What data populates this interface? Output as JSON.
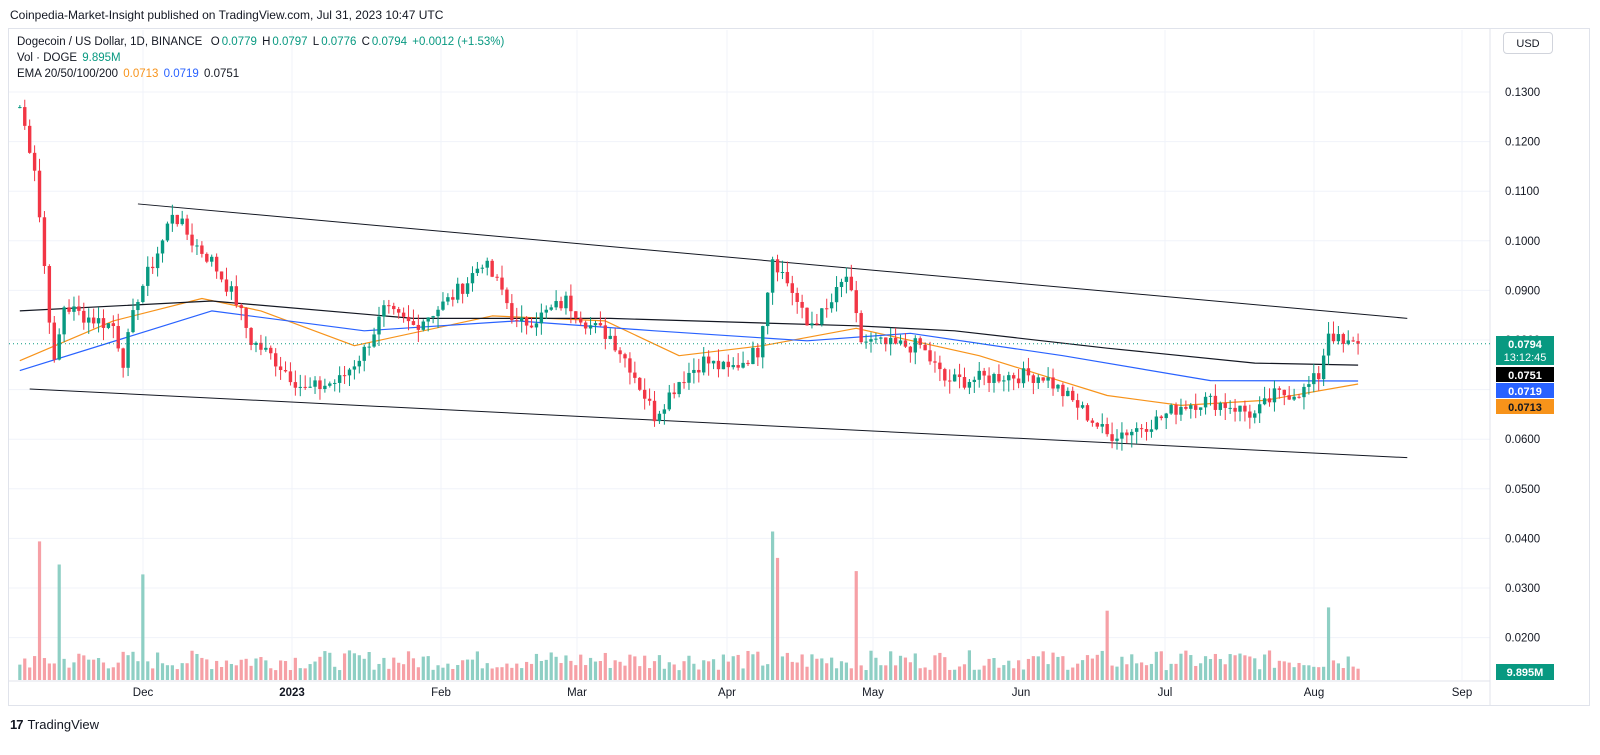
{
  "header": {
    "publisher": "Coinpedia-Market-Insight published on TradingView.com, Jul 31, 2023 10:47 UTC"
  },
  "legend": {
    "symbol": "Dogecoin / US Dollar, 1D, BINANCE",
    "open_label": "O",
    "open": "0.0779",
    "high_label": "H",
    "high": "0.0797",
    "low_label": "L",
    "low": "0.0776",
    "close_label": "C",
    "close": "0.0794",
    "change": "+0.0012 (+1.53%)",
    "vol_label": "Vol · DOGE",
    "vol_value": "9.895M",
    "ema_label": "EMA 20/50/100/200",
    "ema_values": [
      "0.0713",
      "0.0719",
      "0.0751"
    ]
  },
  "currency_button": "USD",
  "footer": {
    "brand": "TradingView",
    "logo": "17"
  },
  "colors": {
    "up": "#089981",
    "down": "#f23645",
    "up_vol": "#8ecfc4",
    "down_vol": "#f6a0a6",
    "ema20": "#f7931a",
    "ema100": "#2962ff",
    "ema200": "#131722",
    "channel": "#131722"
  },
  "chart_data": {
    "type": "candlestick",
    "title": "Dogecoin / US Dollar, 1D, BINANCE",
    "price_axis_ticks": [
      "0.1300",
      "0.1200",
      "0.1100",
      "0.1000",
      "0.0900",
      "0.0800",
      "0.0700",
      "0.0600",
      "0.0500",
      "0.0400",
      "0.0300",
      "0.0200"
    ],
    "time_axis_ticks": [
      "Dec",
      "2023",
      "Feb",
      "Mar",
      "Apr",
      "May",
      "Jun",
      "Jul",
      "Aug",
      "Sep"
    ],
    "ylim": [
      0.0495,
      0.1375
    ],
    "price_labels": {
      "last_price": "0.0794",
      "countdown": "13:12:45",
      "ema200": "0.0751",
      "ema100": "0.0719",
      "ema20": "0.0713",
      "volume": "9.895M"
    },
    "trend_channel": {
      "upper": [
        [
          "2022-11-25",
          0.1075
        ],
        [
          "2023-08-10",
          0.0845
        ]
      ],
      "lower": [
        [
          "2022-11-03",
          0.0703
        ],
        [
          "2023-08-10",
          0.0565
        ]
      ]
    },
    "close_anchors": [
      [
        "2022-11-01",
        0.127
      ],
      [
        "2022-11-04",
        0.115
      ],
      [
        "2022-11-08",
        0.075
      ],
      [
        "2022-11-10",
        0.087
      ],
      [
        "2022-11-14",
        0.085
      ],
      [
        "2022-11-20",
        0.083
      ],
      [
        "2022-11-22",
        0.076
      ],
      [
        "2022-11-25",
        0.089
      ],
      [
        "2022-11-30",
        0.1
      ],
      [
        "2022-12-02",
        0.106
      ],
      [
        "2022-12-06",
        0.1
      ],
      [
        "2022-12-10",
        0.096
      ],
      [
        "2022-12-15",
        0.088
      ],
      [
        "2022-12-18",
        0.08
      ],
      [
        "2022-12-22",
        0.077
      ],
      [
        "2022-12-29",
        0.07
      ],
      [
        "2023-01-05",
        0.072
      ],
      [
        "2023-01-10",
        0.078
      ],
      [
        "2023-01-14",
        0.086
      ],
      [
        "2023-01-20",
        0.083
      ],
      [
        "2023-01-27",
        0.088
      ],
      [
        "2023-01-31",
        0.092
      ],
      [
        "2023-02-03",
        0.096
      ],
      [
        "2023-02-07",
        0.09
      ],
      [
        "2023-02-10",
        0.083
      ],
      [
        "2023-02-15",
        0.085
      ],
      [
        "2023-02-20",
        0.088
      ],
      [
        "2023-02-25",
        0.083
      ],
      [
        "2023-03-01",
        0.081
      ],
      [
        "2023-03-05",
        0.075
      ],
      [
        "2023-03-10",
        0.065
      ],
      [
        "2023-03-15",
        0.072
      ],
      [
        "2023-03-20",
        0.076
      ],
      [
        "2023-03-25",
        0.074
      ],
      [
        "2023-03-31",
        0.078
      ],
      [
        "2023-04-03",
        0.097
      ],
      [
        "2023-04-07",
        0.09
      ],
      [
        "2023-04-10",
        0.083
      ],
      [
        "2023-04-14",
        0.086
      ],
      [
        "2023-04-18",
        0.093
      ],
      [
        "2023-04-21",
        0.08
      ],
      [
        "2023-04-27",
        0.079
      ],
      [
        "2023-05-03",
        0.079
      ],
      [
        "2023-05-08",
        0.072
      ],
      [
        "2023-05-12",
        0.072
      ],
      [
        "2023-05-20",
        0.073
      ],
      [
        "2023-05-28",
        0.073
      ],
      [
        "2023-06-05",
        0.066
      ],
      [
        "2023-06-10",
        0.061
      ],
      [
        "2023-06-15",
        0.062
      ],
      [
        "2023-06-20",
        0.064
      ],
      [
        "2023-06-25",
        0.067
      ],
      [
        "2023-06-30",
        0.068
      ],
      [
        "2023-07-05",
        0.067
      ],
      [
        "2023-07-10",
        0.065
      ],
      [
        "2023-07-14",
        0.069
      ],
      [
        "2023-07-20",
        0.07
      ],
      [
        "2023-07-23",
        0.073
      ],
      [
        "2023-07-25",
        0.082
      ],
      [
        "2023-07-28",
        0.079
      ],
      [
        "2023-07-31",
        0.0794
      ]
    ],
    "volume_axis_ticks": [
      "0.0400",
      "0.0300",
      "0.0200"
    ],
    "volume_spikes_M": [
      [
        "2022-11-05",
        42
      ],
      [
        "2022-11-09",
        35
      ],
      [
        "2022-11-26",
        32
      ],
      [
        "2023-04-03",
        45
      ],
      [
        "2023-04-04",
        37
      ],
      [
        "2023-04-20",
        33
      ],
      [
        "2023-06-10",
        21
      ],
      [
        "2023-07-25",
        22
      ]
    ],
    "ema_series": {
      "EMA20": [
        [
          "2022-11-01",
          0.076
        ],
        [
          "2022-11-20",
          0.084
        ],
        [
          "2022-12-08",
          0.0885
        ],
        [
          "2022-12-20",
          0.086
        ],
        [
          "2023-01-08",
          0.079
        ],
        [
          "2023-02-05",
          0.085
        ],
        [
          "2023-02-28",
          0.084
        ],
        [
          "2023-03-15",
          0.077
        ],
        [
          "2023-04-01",
          0.079
        ],
        [
          "2023-04-20",
          0.0825
        ],
        [
          "2023-05-15",
          0.077
        ],
        [
          "2023-06-10",
          0.069
        ],
        [
          "2023-06-25",
          0.067
        ],
        [
          "2023-07-12",
          0.068
        ],
        [
          "2023-07-31",
          0.0713
        ]
      ],
      "EMA100": [
        [
          "2022-11-01",
          0.074
        ],
        [
          "2022-12-10",
          0.086
        ],
        [
          "2023-01-10",
          0.082
        ],
        [
          "2023-02-10",
          0.084
        ],
        [
          "2023-03-10",
          0.082
        ],
        [
          "2023-04-10",
          0.08
        ],
        [
          "2023-05-01",
          0.0815
        ],
        [
          "2023-06-01",
          0.077
        ],
        [
          "2023-07-01",
          0.072
        ],
        [
          "2023-07-31",
          0.0719
        ]
      ],
      "EMA200": [
        [
          "2022-11-01",
          0.086
        ],
        [
          "2022-12-10",
          0.088
        ],
        [
          "2023-01-20",
          0.0845
        ],
        [
          "2023-03-01",
          0.0845
        ],
        [
          "2023-04-20",
          0.083
        ],
        [
          "2023-05-10",
          0.082
        ],
        [
          "2023-06-10",
          0.0785
        ],
        [
          "2023-07-10",
          0.0755
        ],
        [
          "2023-07-31",
          0.0751
        ]
      ]
    }
  }
}
